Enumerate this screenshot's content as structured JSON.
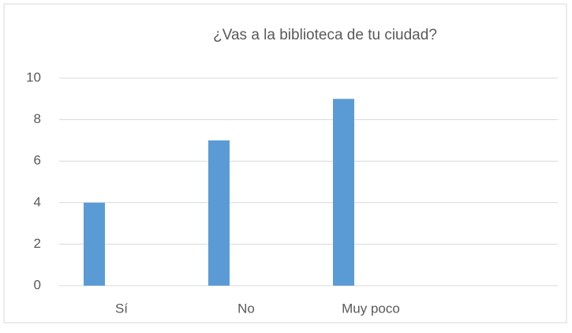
{
  "chart_data": {
    "type": "bar",
    "title": "¿Vas a la biblioteca de tu ciudad?",
    "categories": [
      "Sí",
      "No",
      "Muy poco"
    ],
    "values": [
      4,
      7,
      9
    ],
    "color": "#5b9bd5",
    "ylim": [
      0,
      10
    ],
    "yticks": [
      0,
      2,
      4,
      6,
      8,
      10
    ],
    "grid": true
  }
}
